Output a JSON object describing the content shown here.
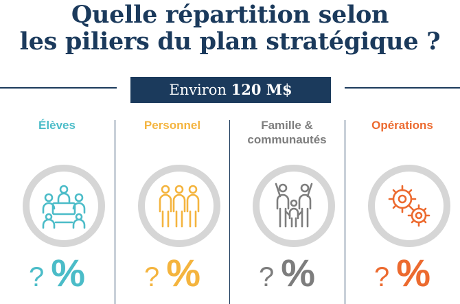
{
  "title": {
    "line1": "Quelle répartition selon",
    "line2": "les piliers du plan stratégique ?"
  },
  "banner": {
    "prefix": "Environ",
    "amount": "120 M$"
  },
  "colors": {
    "navy": "#1b3a5c",
    "teal": "#4bbcc8",
    "yellow": "#f4b43e",
    "gray": "#7d7d7d",
    "orange": "#ec6a2f",
    "ring": "#d6d6d6"
  },
  "pillars": [
    {
      "label": "Élèves",
      "icon": "students-at-table-icon",
      "color": "#4bbcc8",
      "question": "?",
      "percent": "%"
    },
    {
      "label": "Personnel",
      "icon": "staff-group-icon",
      "color": "#f4b43e",
      "question": "?",
      "percent": "%"
    },
    {
      "label": "Famille &\ncommunautés",
      "icon": "family-community-icon",
      "color": "#7d7d7d",
      "question": "?",
      "percent": "%"
    },
    {
      "label": "Opérations",
      "icon": "gears-icon",
      "color": "#ec6a2f",
      "question": "?",
      "percent": "%"
    }
  ]
}
